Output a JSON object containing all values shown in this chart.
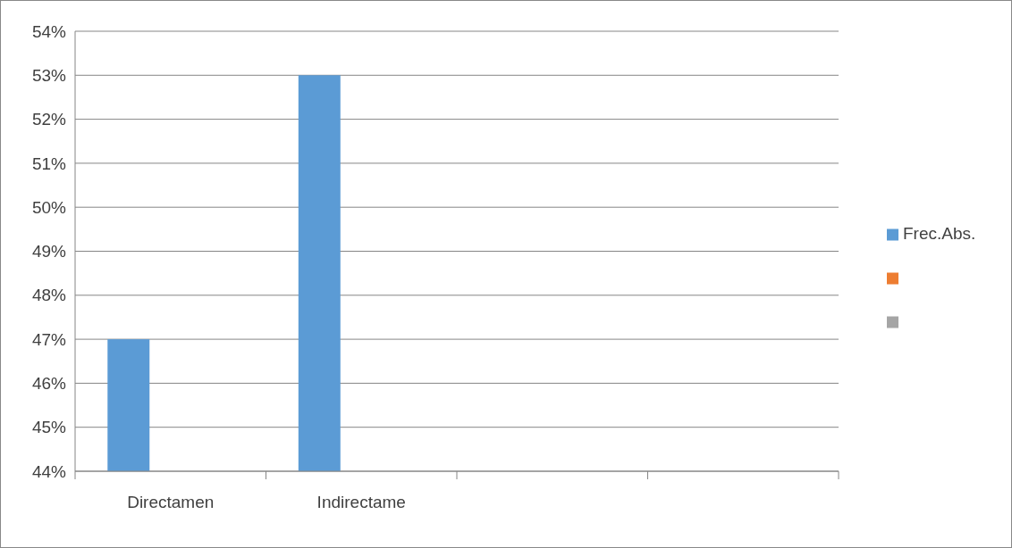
{
  "chart_data": {
    "type": "bar",
    "categories": [
      "Directamen",
      "Indirectame",
      null,
      null
    ],
    "series": [
      {
        "name": "Frec.Abs.",
        "color": "#5b9bd5",
        "values": [
          47,
          53,
          null,
          null
        ]
      },
      {
        "color": "#ed7d31",
        "values": [
          null,
          null,
          null,
          null
        ]
      },
      {
        "color": "#a5a5a5",
        "values": [
          null,
          null,
          null,
          null
        ]
      }
    ],
    "ylim": [
      44,
      54
    ],
    "yticks": [
      {
        "value": 44,
        "label": "44%"
      },
      {
        "value": 45,
        "label": "45%"
      },
      {
        "value": 46,
        "label": "46%"
      },
      {
        "value": 47,
        "label": "47%"
      },
      {
        "value": 48,
        "label": "48%"
      },
      {
        "value": 49,
        "label": "49%"
      },
      {
        "value": 50,
        "label": "50%"
      },
      {
        "value": 51,
        "label": "51%"
      },
      {
        "value": 52,
        "label": "52%"
      },
      {
        "value": 53,
        "label": "53%"
      },
      {
        "value": 54,
        "label": "54%"
      }
    ],
    "grid": "y",
    "legend": "right"
  }
}
